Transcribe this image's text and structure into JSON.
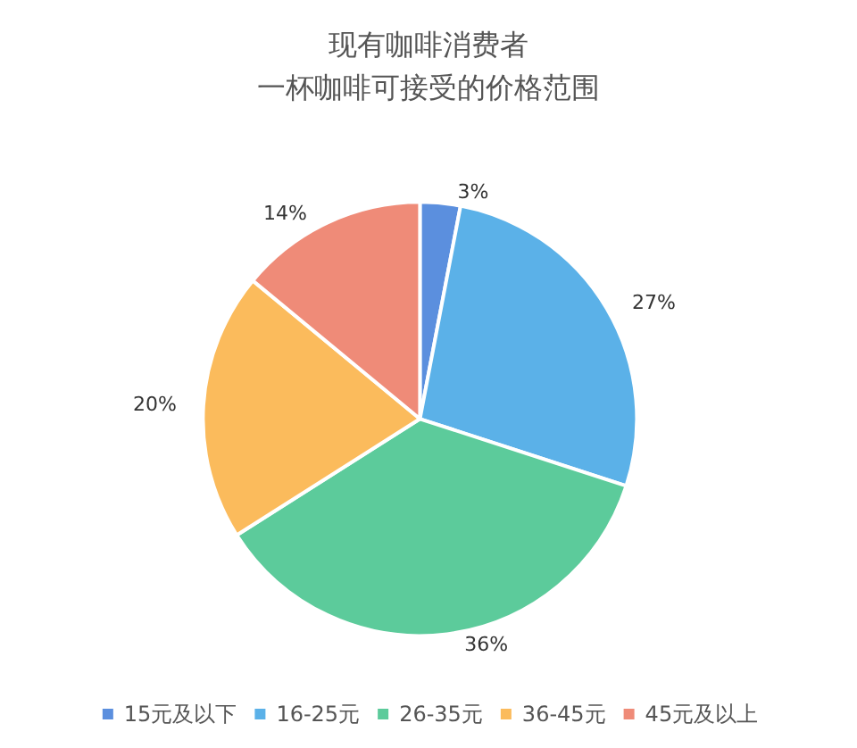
{
  "chart_data": {
    "type": "pie",
    "title": "现有咖啡消费者",
    "subtitle": "一杯咖啡可接受的价格范围",
    "categories": [
      "15元及以下",
      "16-25元",
      "26-35元",
      "36-45元",
      "45元及以上"
    ],
    "values": [
      3,
      27,
      36,
      20,
      14
    ],
    "colors": [
      "#5b8fde",
      "#5bb1e8",
      "#5ccb9b",
      "#fbbb5c",
      "#ef8b78"
    ],
    "value_labels": [
      "3%",
      "27%",
      "36%",
      "20%",
      "14%"
    ],
    "legend": "bottom"
  }
}
